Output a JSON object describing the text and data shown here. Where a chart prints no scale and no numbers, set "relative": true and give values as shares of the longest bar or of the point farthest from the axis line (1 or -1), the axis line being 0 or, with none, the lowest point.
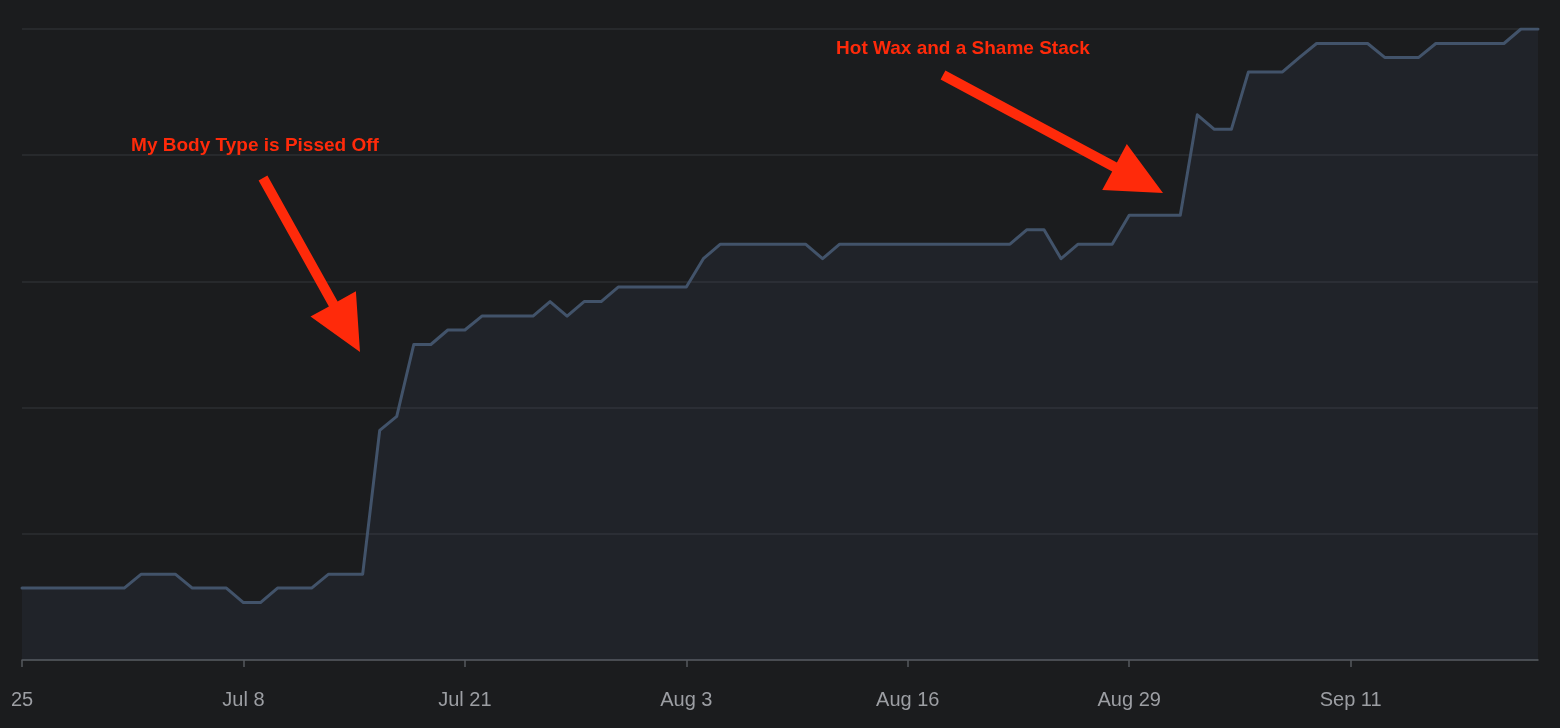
{
  "chart_data": {
    "type": "area",
    "color": "#42536a",
    "relative": true,
    "grid": "y",
    "x": [
      "--06-25",
      "--06-26",
      "--06-27",
      "--06-28",
      "--06-29",
      "--06-30",
      "--07-01",
      "--07-02",
      "--07-03",
      "--07-04",
      "--07-05",
      "--07-06",
      "--07-07",
      "--07-08",
      "--07-09",
      "--07-10",
      "--07-11",
      "--07-12",
      "--07-13",
      "--07-14",
      "--07-15",
      "--07-16",
      "--07-17",
      "--07-18",
      "--07-19",
      "--07-20",
      "--07-21",
      "--07-22",
      "--07-23",
      "--07-24",
      "--07-25",
      "--07-26",
      "--07-27",
      "--07-28",
      "--07-29",
      "--07-30",
      "--07-31",
      "--08-01",
      "--08-02",
      "--08-03",
      "--08-04",
      "--08-05",
      "--08-06",
      "--08-07",
      "--08-08",
      "--08-09",
      "--08-10",
      "--08-11",
      "--08-12",
      "--08-13",
      "--08-14",
      "--08-15",
      "--08-16",
      "--08-17",
      "--08-18",
      "--08-19",
      "--08-20",
      "--08-21",
      "--08-22",
      "--08-23",
      "--08-24",
      "--08-25",
      "--08-26",
      "--08-27",
      "--08-28",
      "--08-29",
      "--08-30",
      "--08-31",
      "--09-01",
      "--09-02",
      "--09-03",
      "--09-04",
      "--09-05",
      "--09-06",
      "--09-07",
      "--09-08",
      "--09-09",
      "--09-10",
      "--09-11",
      "--09-12",
      "--09-13",
      "--09-14",
      "--09-15",
      "--09-16",
      "--09-17",
      "--09-18",
      "--09-19",
      "--09-20",
      "--09-21",
      "--09-22"
    ],
    "values": [
      0.114,
      0.114,
      0.114,
      0.114,
      0.114,
      0.114,
      0.114,
      0.136,
      0.136,
      0.136,
      0.114,
      0.114,
      0.114,
      0.091,
      0.091,
      0.114,
      0.114,
      0.114,
      0.136,
      0.136,
      0.136,
      0.364,
      0.386,
      0.5,
      0.5,
      0.523,
      0.523,
      0.545,
      0.545,
      0.545,
      0.545,
      0.568,
      0.545,
      0.568,
      0.568,
      0.591,
      0.591,
      0.591,
      0.591,
      0.591,
      0.636,
      0.659,
      0.659,
      0.659,
      0.659,
      0.659,
      0.659,
      0.636,
      0.659,
      0.659,
      0.659,
      0.659,
      0.659,
      0.659,
      0.659,
      0.659,
      0.659,
      0.659,
      0.659,
      0.682,
      0.682,
      0.636,
      0.659,
      0.659,
      0.659,
      0.705,
      0.705,
      0.705,
      0.705,
      0.864,
      0.841,
      0.841,
      0.932,
      0.932,
      0.932,
      0.955,
      0.977,
      0.977,
      0.977,
      0.977,
      0.955,
      0.955,
      0.955,
      0.977,
      0.977,
      0.977,
      0.977,
      0.977,
      1,
      1
    ],
    "xlim": [
      "--06-25",
      "--09-22"
    ],
    "xticks": [
      {
        "value": "--06-25",
        "label": "25"
      },
      {
        "value": "--07-08",
        "label": "Jul 8"
      },
      {
        "value": "--07-21",
        "label": "Jul 21"
      },
      {
        "value": "--08-03",
        "label": "Aug 3"
      },
      {
        "value": "--08-16",
        "label": "Aug 16"
      },
      {
        "value": "--08-29",
        "label": "Aug 29"
      },
      {
        "value": "--09-11",
        "label": "Sep 11"
      }
    ],
    "annotations": [
      "My Body Type is Pissed Off",
      "Hot Wax and a Shame Stack"
    ]
  }
}
